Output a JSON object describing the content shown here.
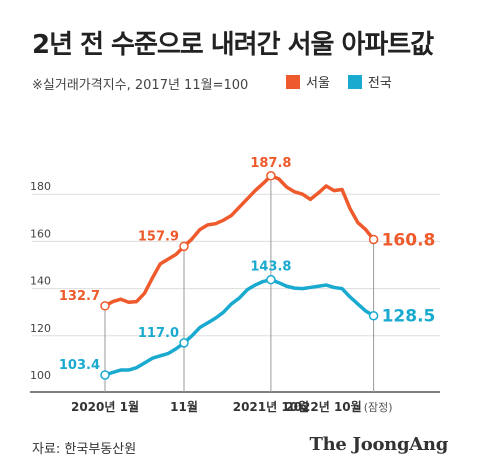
{
  "title": "2년 전 수준으로 내려간 서울 아파트값",
  "subtitle": "※실거래가격지수, 2017년 11월=100",
  "colors": {
    "seoul": "#ee5a2b",
    "national": "#1aaad0",
    "grid": "#dddddd",
    "axis": "#333333",
    "vline": "#999999"
  },
  "legend": [
    {
      "label": "서울",
      "color": "#ee5a2b"
    },
    {
      "label": "전국",
      "color": "#1aaad0"
    }
  ],
  "source": "자료: 한국부동산원",
  "brand": "The JoongAng",
  "chart_data": {
    "type": "line",
    "title": "",
    "xlabel": "",
    "ylabel": "",
    "ylim": [
      100,
      190
    ],
    "yticks": [
      100,
      120,
      140,
      160,
      180
    ],
    "grid": true,
    "x_ticks": [
      {
        "label": "2020년 1월",
        "index": 0
      },
      {
        "label": "11월",
        "index": 10
      },
      {
        "label": "2021년 10월",
        "index": 21
      },
      {
        "label": "2022년 10월",
        "index": 33
      }
    ],
    "x_tick_suffix": "(잠정)",
    "series": [
      {
        "name": "서울",
        "color": "#ee5a2b",
        "values": [
          132.7,
          134.5,
          135.5,
          134.2,
          134.5,
          138.0,
          144.5,
          150.5,
          152.5,
          154.5,
          157.9,
          161.0,
          165.0,
          167.0,
          167.5,
          169.0,
          171.0,
          174.5,
          178.0,
          181.5,
          184.5,
          187.8,
          186.5,
          183.0,
          181.0,
          180.0,
          177.8,
          180.5,
          183.5,
          181.5,
          182.0,
          174.0,
          168.0,
          165.0,
          160.8
        ],
        "labels": [
          {
            "index": 0,
            "text": "132.7",
            "pos": "left"
          },
          {
            "index": 10,
            "text": "157.9",
            "pos": "left"
          },
          {
            "index": 21,
            "text": "187.8",
            "pos": "top"
          },
          {
            "index": 34,
            "text": "160.8",
            "pos": "right"
          }
        ]
      },
      {
        "name": "전국",
        "color": "#1aaad0",
        "values": [
          103.4,
          104.5,
          105.5,
          105.5,
          106.5,
          108.5,
          110.5,
          111.5,
          112.5,
          114.5,
          117.0,
          120.0,
          123.5,
          125.5,
          127.5,
          130.0,
          133.5,
          136.0,
          139.5,
          141.5,
          143.0,
          143.8,
          142.5,
          141.0,
          140.2,
          140.0,
          140.5,
          141.0,
          141.5,
          140.5,
          140.0,
          136.5,
          133.5,
          130.5,
          128.5
        ],
        "labels": [
          {
            "index": 0,
            "text": "103.4",
            "pos": "left"
          },
          {
            "index": 10,
            "text": "117.0",
            "pos": "left"
          },
          {
            "index": 21,
            "text": "143.8",
            "pos": "top"
          },
          {
            "index": 34,
            "text": "128.5",
            "pos": "right"
          }
        ]
      }
    ],
    "markers": [
      0,
      10,
      21,
      34
    ]
  }
}
